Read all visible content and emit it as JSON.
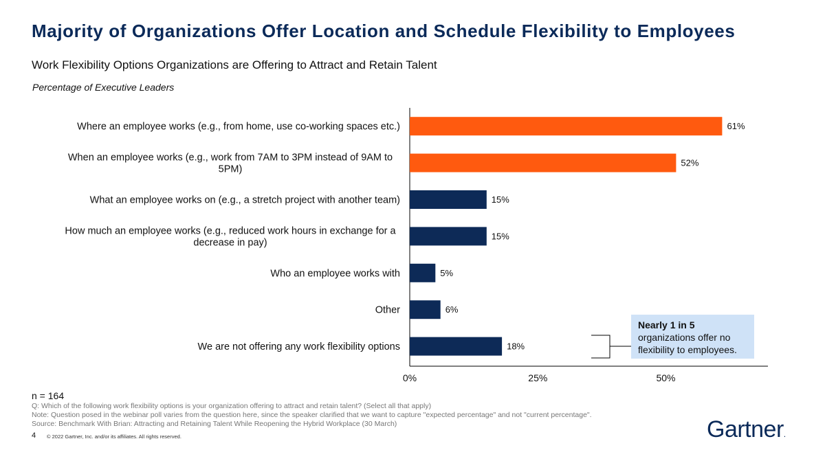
{
  "header": {
    "title": "Majority of Organizations Offer Location and Schedule Flexibility to Employees",
    "subtitle": "Work Flexibility Options Organizations are Offering to Attract and Retain Talent",
    "unit_label": "Percentage of Executive Leaders"
  },
  "chart_data": {
    "type": "bar",
    "orientation": "horizontal",
    "title": "Work Flexibility Options Organizations are Offering to Attract and Retain Talent",
    "ylabel": "Percentage of Executive Leaders",
    "categories": [
      [
        "Where an employee works (e.g., from home, use co-working spaces etc.)"
      ],
      [
        "When an employee works (e.g., work from 7AM to 3PM instead of 9AM to",
        "5PM)"
      ],
      [
        "What an employee works on (e.g., a stretch project with another team)"
      ],
      [
        "How much an employee works (e.g., reduced work hours in exchange for a",
        "decrease in pay)"
      ],
      [
        "Who an employee works with"
      ],
      [
        "Other"
      ],
      [
        "We are not offering any work flexibility options"
      ]
    ],
    "values": [
      61,
      52,
      15,
      15,
      5,
      6,
      18
    ],
    "value_labels": [
      "61%",
      "52%",
      "15%",
      "15%",
      "5%",
      "6%",
      "18%"
    ],
    "highlight": [
      true,
      true,
      false,
      false,
      false,
      false,
      false
    ],
    "xlim": [
      0,
      70
    ],
    "xticks": [
      0,
      25,
      50
    ],
    "xtick_labels": [
      "0%",
      "25%",
      "50%"
    ],
    "grid": false,
    "colors": {
      "highlight": "#ff5a0f",
      "default": "#0d2a57"
    }
  },
  "callout": {
    "bold": "Nearly 1 in 5",
    "text": "organizations offer no flexibility to employees."
  },
  "footer": {
    "n": "n = 164",
    "question": "Q: Which of the following work flexibility options is your organization offering to attract and retain talent? (Select all that apply)",
    "note": "Note: Question posed in the webinar poll varies from the question here, since the speaker clarified that we want to capture \"expected percentage\" and not \"current percentage\".",
    "source": "Source: Benchmark With Brian: Attracting and Retaining Talent While Reopening the Hybrid Workplace (30 March)",
    "page": "4",
    "copyright": "© 2022 Gartner, Inc. and/or its affiliates. All rights reserved."
  },
  "logo": {
    "text": "Gartner",
    "dot": "."
  }
}
